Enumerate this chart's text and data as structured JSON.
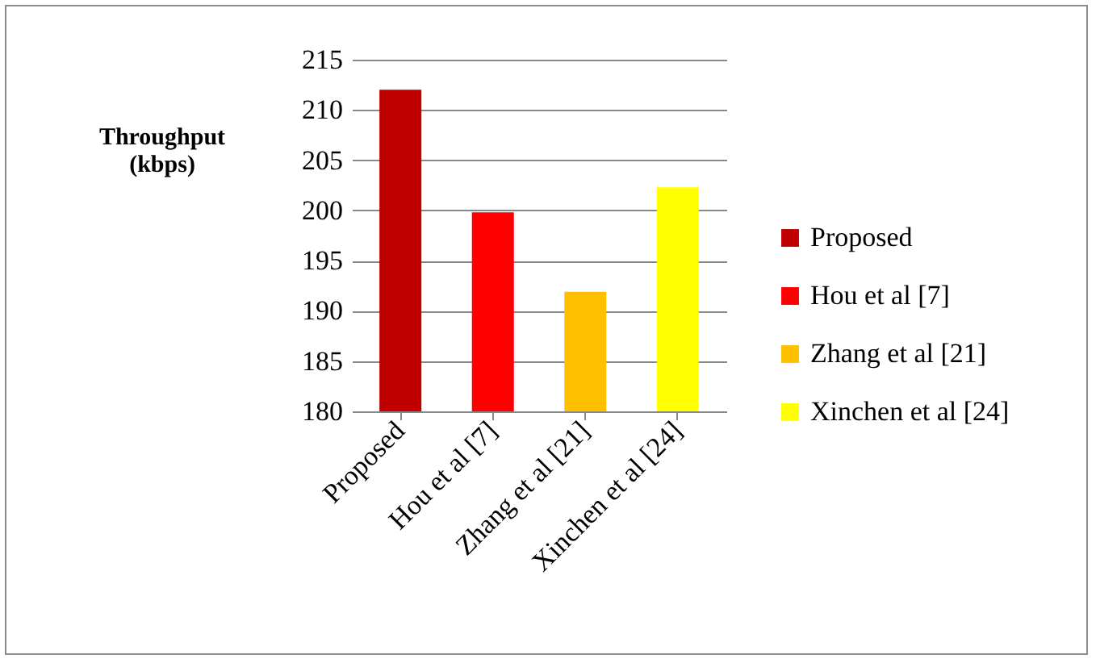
{
  "chart_data": {
    "type": "bar",
    "ylabel": "Throughput (kbps)",
    "categories": [
      "Proposed",
      "Hou et al [7]",
      "Zhang et al [21]",
      "Xinchen et al [24]"
    ],
    "series": [
      {
        "name": "Proposed",
        "color": "#c00000",
        "values": [
          212,
          null,
          null,
          null
        ]
      },
      {
        "name": "Hou et al [7]",
        "color": "#ff0000",
        "values": [
          null,
          199.8,
          null,
          null
        ]
      },
      {
        "name": "Zhang et al [21]",
        "color": "#ffc000",
        "values": [
          null,
          null,
          191.9,
          null
        ]
      },
      {
        "name": "Xinchen et al [24]",
        "color": "#ffff00",
        "values": [
          null,
          null,
          null,
          202.3
        ]
      }
    ],
    "ylim": [
      180,
      215
    ],
    "yticks": [
      180,
      185,
      190,
      195,
      200,
      205,
      210,
      215
    ],
    "grid": "y",
    "legend": "right"
  }
}
